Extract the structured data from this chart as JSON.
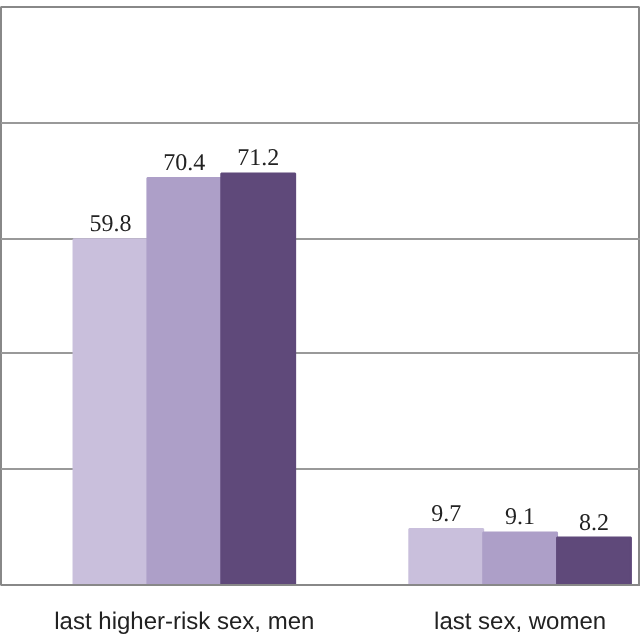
{
  "chart_data": {
    "type": "bar",
    "categories": [
      "last higher-risk sex, men",
      "last sex, women"
    ],
    "series": [
      {
        "color": "#c9bfdc",
        "values": [
          59.8,
          9.7
        ]
      },
      {
        "color": "#ad9fc8",
        "values": [
          70.4,
          9.1
        ]
      },
      {
        "color": "#5f497a",
        "values": [
          71.2,
          8.2
        ]
      }
    ],
    "ylim": [
      0,
      100
    ],
    "yticks": [
      {
        "value": 0,
        "label": null
      },
      {
        "value": 20,
        "label": null
      },
      {
        "value": 40,
        "label": null
      },
      {
        "value": 60,
        "label": null
      },
      {
        "value": 80,
        "label": null
      },
      {
        "value": 100,
        "label": null
      }
    ],
    "tick_labels": "x",
    "grid": "y",
    "data_labels": true
  }
}
